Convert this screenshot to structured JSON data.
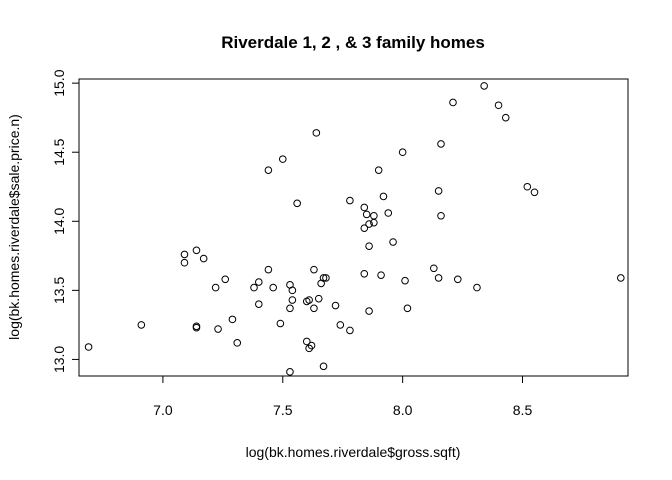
{
  "chart_data": {
    "type": "scatter",
    "title": "Riverdale 1, 2 , & 3 family homes",
    "xlabel": "log(bk.homes.riverdale$gross.sqft)",
    "ylabel": "log(bk.homes.riverdale$sale.price.n)",
    "xlim": [
      6.65,
      8.94
    ],
    "ylim": [
      12.88,
      15.03
    ],
    "xticks": [
      7.0,
      7.5,
      8.0,
      8.5
    ],
    "xtick_labels": [
      "7.0",
      "7.5",
      "8.0",
      "8.5"
    ],
    "yticks": [
      13.0,
      13.5,
      14.0,
      14.5,
      15.0
    ],
    "ytick_labels": [
      "13.0",
      "13.5",
      "14.0",
      "14.5",
      "15.0"
    ],
    "grid": false,
    "marker": "open-circle",
    "points": [
      [
        6.69,
        13.09
      ],
      [
        6.91,
        13.25
      ],
      [
        7.09,
        13.76
      ],
      [
        7.09,
        13.7
      ],
      [
        7.14,
        13.79
      ],
      [
        7.14,
        13.24
      ],
      [
        7.14,
        13.23
      ],
      [
        7.17,
        13.73
      ],
      [
        7.22,
        13.52
      ],
      [
        7.23,
        13.22
      ],
      [
        7.26,
        13.58
      ],
      [
        7.29,
        13.29
      ],
      [
        7.31,
        13.12
      ],
      [
        7.38,
        13.52
      ],
      [
        7.4,
        13.56
      ],
      [
        7.4,
        13.4
      ],
      [
        7.44,
        13.65
      ],
      [
        7.44,
        14.37
      ],
      [
        7.46,
        13.52
      ],
      [
        7.49,
        13.26
      ],
      [
        7.5,
        14.45
      ],
      [
        7.53,
        13.54
      ],
      [
        7.53,
        13.37
      ],
      [
        7.54,
        13.5
      ],
      [
        7.54,
        13.43
      ],
      [
        7.53,
        12.91
      ],
      [
        7.56,
        14.13
      ],
      [
        7.6,
        13.42
      ],
      [
        7.6,
        13.13
      ],
      [
        7.61,
        13.43
      ],
      [
        7.61,
        13.08
      ],
      [
        7.62,
        13.1
      ],
      [
        7.63,
        13.65
      ],
      [
        7.63,
        13.37
      ],
      [
        7.64,
        14.64
      ],
      [
        7.65,
        13.44
      ],
      [
        7.66,
        13.55
      ],
      [
        7.67,
        13.59
      ],
      [
        7.67,
        12.95
      ],
      [
        7.68,
        13.59
      ],
      [
        7.72,
        13.39
      ],
      [
        7.74,
        13.25
      ],
      [
        7.78,
        14.15
      ],
      [
        7.78,
        13.21
      ],
      [
        7.84,
        13.62
      ],
      [
        7.84,
        13.95
      ],
      [
        7.84,
        14.1
      ],
      [
        7.85,
        14.05
      ],
      [
        7.86,
        13.98
      ],
      [
        7.86,
        13.82
      ],
      [
        7.86,
        13.35
      ],
      [
        7.88,
        14.04
      ],
      [
        7.88,
        13.99
      ],
      [
        7.9,
        14.37
      ],
      [
        7.91,
        13.61
      ],
      [
        7.92,
        14.18
      ],
      [
        7.94,
        14.06
      ],
      [
        7.96,
        13.85
      ],
      [
        8.0,
        14.5
      ],
      [
        8.01,
        13.57
      ],
      [
        8.02,
        13.37
      ],
      [
        8.13,
        13.66
      ],
      [
        8.15,
        14.22
      ],
      [
        8.15,
        13.59
      ],
      [
        8.16,
        14.56
      ],
      [
        8.16,
        14.04
      ],
      [
        8.21,
        14.86
      ],
      [
        8.23,
        13.58
      ],
      [
        8.31,
        13.52
      ],
      [
        8.34,
        14.98
      ],
      [
        8.4,
        14.84
      ],
      [
        8.43,
        14.75
      ],
      [
        8.52,
        14.25
      ],
      [
        8.55,
        14.21
      ],
      [
        8.91,
        13.59
      ]
    ]
  }
}
